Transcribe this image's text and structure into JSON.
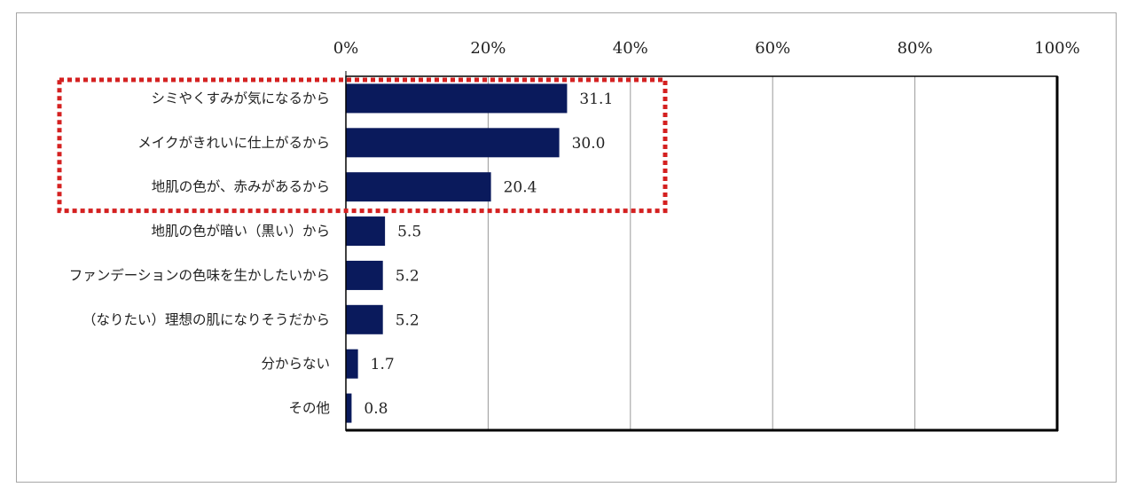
{
  "chart_data": {
    "type": "bar",
    "orientation": "horizontal",
    "title": "",
    "xlabel": "",
    "ylabel": "",
    "xlim": [
      0,
      100
    ],
    "x_ticks": [
      0,
      20,
      40,
      60,
      80,
      100
    ],
    "x_tick_labels": [
      "0%",
      "20%",
      "40%",
      "60%",
      "80%",
      "100%"
    ],
    "x_axis_position": "top",
    "grid": true,
    "categories": [
      "シミやくすみが気になるから",
      "メイクがきれいに仕上がるから",
      "地肌の色が、赤みがあるから",
      "地肌の色が暗い（黒い）から",
      "ファンデーションの色味を生かしたいから",
      "（なりたい）理想の肌になりそうだから",
      "分からない",
      "その他"
    ],
    "values": [
      31.1,
      30.0,
      20.4,
      5.5,
      5.2,
      5.2,
      1.7,
      0.8
    ],
    "value_labels": [
      "31.1",
      "30.0",
      "20.4",
      "5.5",
      "5.2",
      "5.2",
      "1.7",
      "0.8"
    ],
    "highlighted_categories": [
      0,
      1,
      2
    ],
    "colors": {
      "bar": "#0a1a5c",
      "highlight": "#d42020",
      "gridline": "#9a9a9a",
      "frame": "#000000"
    }
  }
}
